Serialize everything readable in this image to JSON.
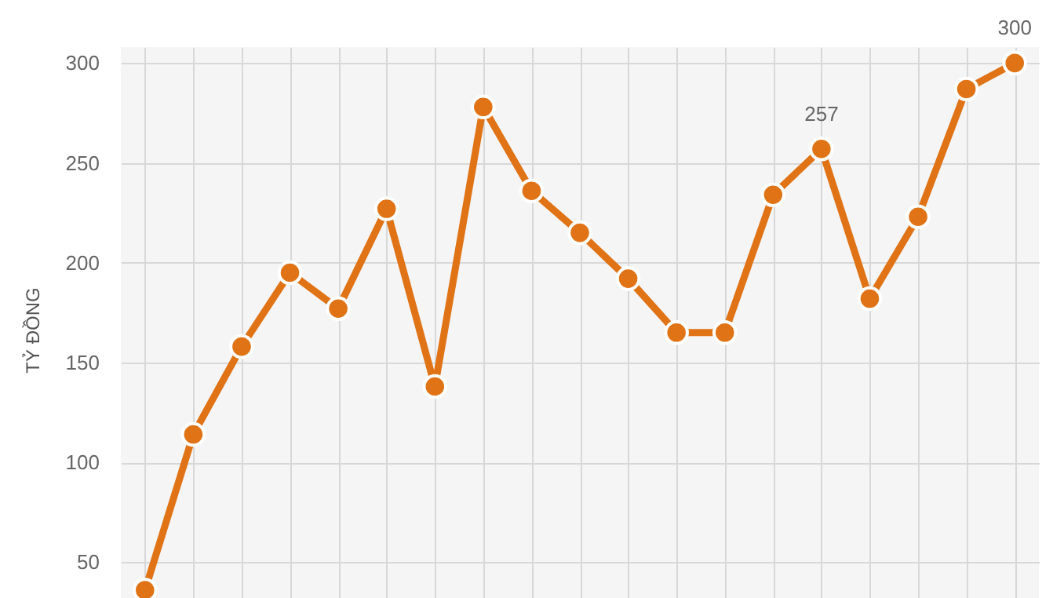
{
  "chart_data": {
    "type": "line",
    "ylabel": "TỶ ĐỒNG",
    "categories": [
      null,
      null,
      null,
      null,
      null,
      null,
      null,
      null,
      null,
      null,
      null,
      null,
      null,
      null,
      null,
      null,
      null,
      null,
      null
    ],
    "series": [
      {
        "color": "#e07316",
        "values": [
          36,
          114,
          158,
          195,
          177,
          227,
          138,
          278,
          236,
          215,
          192,
          165,
          165,
          234,
          257,
          182,
          223,
          287,
          300
        ],
        "value_labels": [
          null,
          null,
          null,
          null,
          null,
          null,
          null,
          null,
          null,
          null,
          null,
          null,
          null,
          null,
          "257",
          null,
          null,
          null,
          "300"
        ]
      }
    ],
    "ylim": [
      25,
      308
    ],
    "yticks": [
      50,
      100,
      150,
      200,
      250,
      300
    ],
    "grid": true,
    "tick_labels": "y",
    "marker": "circle",
    "line_style": "solid"
  }
}
